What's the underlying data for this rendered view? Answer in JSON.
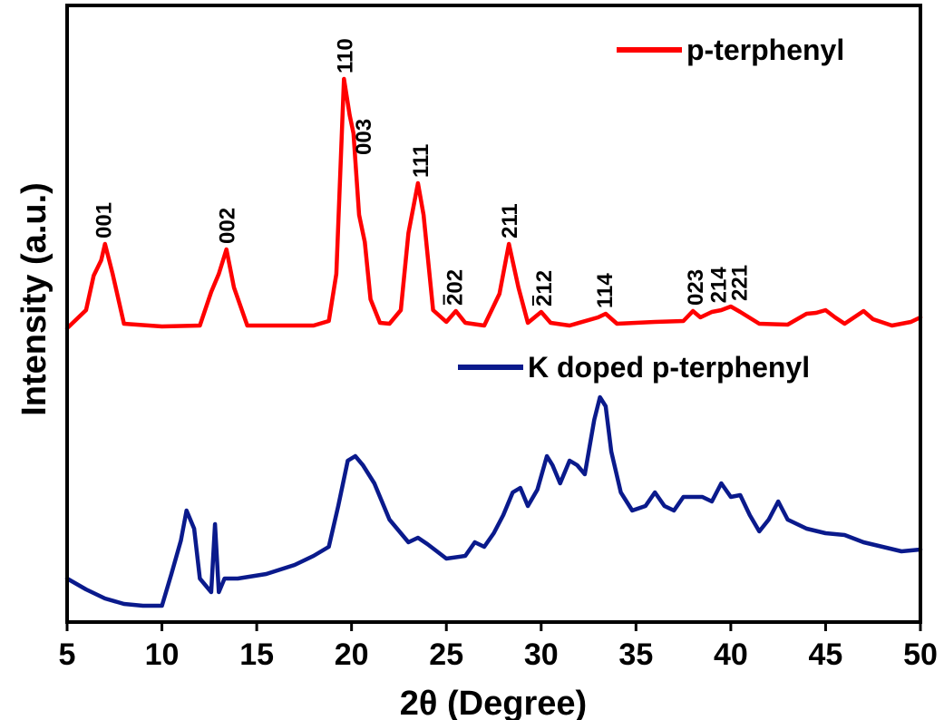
{
  "chart_data": {
    "type": "line",
    "xlabel": "2θ (Degree)",
    "ylabel": "Intensity (a.u.)",
    "xlim": [
      5,
      50
    ],
    "xticks": [
      5,
      10,
      15,
      20,
      25,
      30,
      35,
      40,
      45,
      50
    ],
    "yticks_labeled": false,
    "grid": false,
    "legend_placement": "inline-per-series",
    "series": [
      {
        "name": "p-terphenyl",
        "color": "#ff0000",
        "legend_slot": 0,
        "x": [
          5.0,
          6.0,
          6.4,
          6.8,
          7.0,
          7.4,
          8.0,
          10.0,
          12.0,
          12.6,
          13.0,
          13.4,
          13.8,
          14.5,
          16.0,
          18.0,
          18.8,
          19.2,
          19.6,
          19.9,
          20.1,
          20.4,
          20.7,
          21.0,
          21.5,
          22.0,
          22.6,
          23.0,
          23.5,
          23.8,
          24.3,
          25.0,
          25.5,
          26.0,
          27.0,
          27.8,
          28.3,
          28.8,
          29.3,
          30.0,
          30.5,
          31.5,
          33.0,
          33.4,
          34.0,
          36.0,
          37.5,
          38.0,
          38.4,
          39.0,
          39.5,
          40.0,
          40.5,
          41.5,
          43.0,
          44.0,
          44.5,
          45.0,
          45.5,
          46.0,
          47.0,
          47.5,
          48.5,
          49.5,
          50.0
        ],
        "y": [
          0.0,
          0.2,
          0.58,
          0.75,
          0.93,
          0.6,
          0.05,
          0.02,
          0.03,
          0.4,
          0.6,
          0.87,
          0.45,
          0.03,
          0.03,
          0.03,
          0.08,
          0.6,
          2.75,
          2.35,
          2.15,
          1.25,
          0.95,
          0.32,
          0.06,
          0.05,
          0.2,
          1.05,
          1.6,
          1.25,
          0.2,
          0.07,
          0.19,
          0.06,
          0.03,
          0.38,
          0.93,
          0.45,
          0.06,
          0.18,
          0.06,
          0.03,
          0.12,
          0.16,
          0.05,
          0.07,
          0.08,
          0.19,
          0.12,
          0.18,
          0.2,
          0.24,
          0.18,
          0.05,
          0.04,
          0.16,
          0.17,
          0.2,
          0.12,
          0.05,
          0.19,
          0.1,
          0.03,
          0.07,
          0.12
        ]
      },
      {
        "name": "K doped p-terphenyl",
        "color": "#0a1a8c",
        "legend_slot": 1,
        "x": [
          5.0,
          6.0,
          7.0,
          8.0,
          9.0,
          10.0,
          10.5,
          11.0,
          11.3,
          11.7,
          12.0,
          12.6,
          12.8,
          13.0,
          13.3,
          14.0,
          15.5,
          17.0,
          18.0,
          18.8,
          19.3,
          19.8,
          20.2,
          20.6,
          21.2,
          22.0,
          23.0,
          23.5,
          24.0,
          24.5,
          25.0,
          26.0,
          26.5,
          27.0,
          27.5,
          28.0,
          28.5,
          28.9,
          29.3,
          29.8,
          30.3,
          30.6,
          31.0,
          31.5,
          31.9,
          32.3,
          32.8,
          33.1,
          33.4,
          33.7,
          34.2,
          34.8,
          35.5,
          36.0,
          36.5,
          37.0,
          37.5,
          38.5,
          39.0,
          39.5,
          40.0,
          40.5,
          41.0,
          41.5,
          42.0,
          42.5,
          43.0,
          44.0,
          45.0,
          46.0,
          47.0,
          48.0,
          49.0,
          50.0
        ],
        "y": [
          0.3,
          0.18,
          0.08,
          0.02,
          0.0,
          0.0,
          0.35,
          0.72,
          1.05,
          0.85,
          0.3,
          0.15,
          0.9,
          0.15,
          0.3,
          0.3,
          0.35,
          0.45,
          0.55,
          0.65,
          1.1,
          1.6,
          1.65,
          1.55,
          1.35,
          0.95,
          0.7,
          0.75,
          0.68,
          0.6,
          0.52,
          0.55,
          0.7,
          0.65,
          0.8,
          1.0,
          1.25,
          1.3,
          1.1,
          1.28,
          1.65,
          1.55,
          1.35,
          1.6,
          1.55,
          1.45,
          2.05,
          2.3,
          2.2,
          1.7,
          1.25,
          1.05,
          1.1,
          1.25,
          1.1,
          1.05,
          1.2,
          1.2,
          1.15,
          1.35,
          1.2,
          1.22,
          1.0,
          0.82,
          0.95,
          1.15,
          0.95,
          0.85,
          0.8,
          0.78,
          0.7,
          0.65,
          0.6,
          0.62
        ]
      }
    ],
    "annotations": [
      {
        "text": "001",
        "x": 6.9
      },
      {
        "text": "002",
        "x": 13.4
      },
      {
        "text": "110",
        "x": 19.6
      },
      {
        "text": "003",
        "x": 20.6
      },
      {
        "text": "111",
        "x": 23.6
      },
      {
        "text": "202",
        "x": 25.4,
        "overline_first_char": true
      },
      {
        "text": "211",
        "x": 28.3
      },
      {
        "text": "212",
        "x": 30.1,
        "overline_first_char": true
      },
      {
        "text": "114",
        "x": 33.3
      },
      {
        "text": "023",
        "x": 38.1
      },
      {
        "text": "214",
        "x": 39.3
      },
      {
        "text": "221",
        "x": 40.4
      }
    ]
  }
}
